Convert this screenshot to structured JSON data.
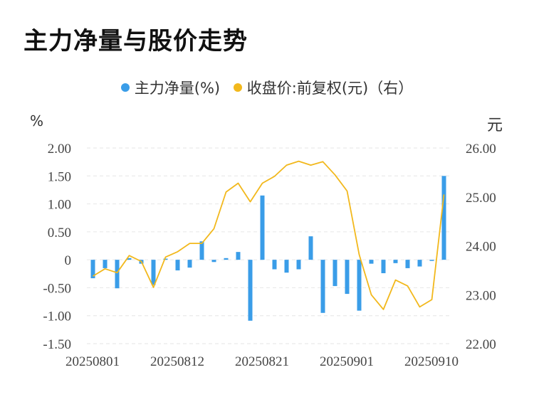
{
  "chart_data": {
    "type": "bar+line",
    "title": "主力净量与股价走势",
    "legend": [
      "主力净量(%)",
      "收盘价:前复权(元)（右）"
    ],
    "left_unit": "%",
    "right_unit": "元",
    "left_axis": {
      "min": -1.5,
      "max": 2.0,
      "ticks": [
        "2.00",
        "1.50",
        "1.00",
        "0.50",
        "0",
        "-0.50",
        "-1.00",
        "-1.50"
      ]
    },
    "right_axis": {
      "min": 22.0,
      "max": 26.0,
      "ticks": [
        "26.00",
        "25.00",
        "24.00",
        "23.00",
        "22.00"
      ]
    },
    "x_tick_labels": [
      "20250801",
      "20250812",
      "20250821",
      "20250901",
      "20250910"
    ],
    "bar_series": {
      "name": "主力净量(%)",
      "color": "#3a9de8",
      "values": [
        -0.33,
        -0.15,
        -0.51,
        0.03,
        -0.07,
        -0.45,
        0.02,
        -0.19,
        -0.14,
        0.33,
        -0.04,
        0.03,
        0.14,
        -1.09,
        1.15,
        -0.17,
        -0.23,
        -0.17,
        0.42,
        -0.95,
        -0.47,
        -0.61,
        -0.91,
        -0.07,
        -0.24,
        -0.06,
        -0.15,
        -0.12,
        -0.02,
        1.5
      ]
    },
    "line_series": {
      "name": "收盘价:前复权(元)（右）",
      "color": "#f2b81c",
      "values": [
        23.38,
        23.53,
        23.45,
        23.8,
        23.68,
        23.15,
        23.77,
        23.88,
        24.05,
        24.05,
        24.35,
        25.1,
        25.28,
        24.9,
        25.28,
        25.42,
        25.65,
        25.73,
        25.65,
        25.72,
        25.45,
        25.12,
        23.82,
        23.0,
        22.7,
        23.3,
        23.18,
        22.75,
        22.9,
        25.05
      ]
    },
    "grid": "horizontal-dashed"
  }
}
